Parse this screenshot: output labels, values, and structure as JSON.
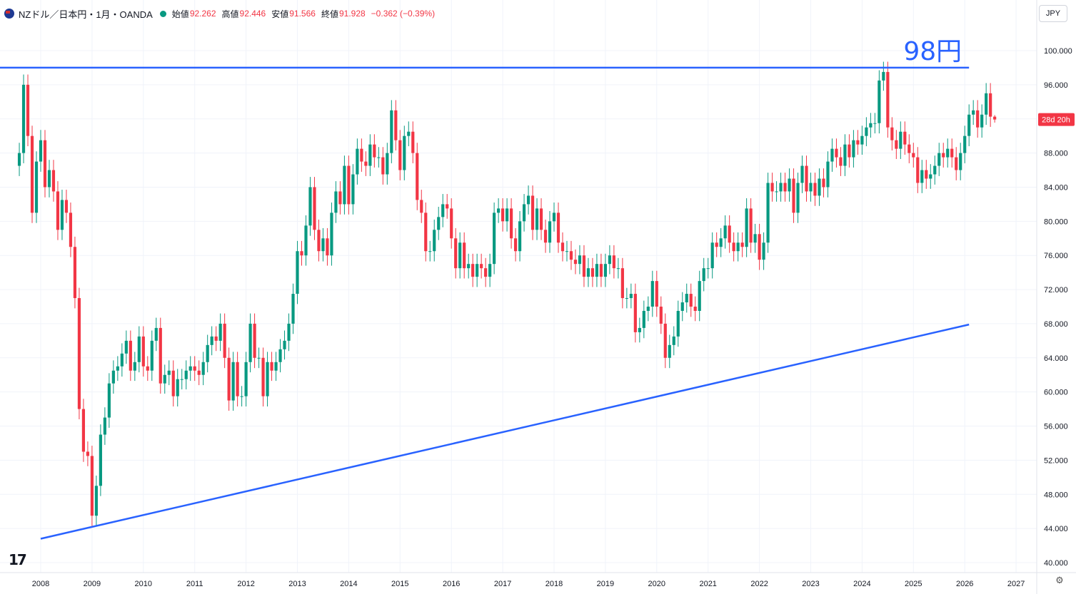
{
  "header": {
    "symbol": "NZドル／日本円・1月・OANDA",
    "open_label": "始値",
    "open": "92.262",
    "high_label": "高値",
    "high": "92.446",
    "low_label": "安値",
    "low": "91.566",
    "close_label": "終値",
    "close": "91.928",
    "change": "−0.362 (−0.39%)"
  },
  "currency_button": "JPY",
  "logo_text": "17",
  "chart_data": {
    "type": "candlestick",
    "interval": "1M",
    "ylim": [
      40,
      100
    ],
    "ytick_labels": [
      "100.000",
      "96.000",
      "92.000",
      "88.000",
      "84.000",
      "80.000",
      "76.000",
      "72.000",
      "68.000",
      "64.000",
      "60.000",
      "56.000",
      "52.000",
      "48.000",
      "44.000",
      "40.000"
    ],
    "xtick_labels": [
      "2008",
      "2009",
      "2010",
      "2011",
      "2012",
      "2013",
      "2014",
      "2015",
      "2016",
      "2017",
      "2018",
      "2019",
      "2020",
      "2021",
      "2022",
      "2023",
      "2024",
      "2025",
      "2026",
      "2027"
    ],
    "countdown_label": "28d 20h",
    "annotation": "98円",
    "resistance_line": {
      "value": 98.0,
      "from": "2007-08",
      "to": "2026-02"
    },
    "support_line": {
      "from": [
        "2008-01",
        42.8
      ],
      "to": [
        "2026-02",
        67.9
      ]
    },
    "colors": {
      "up": "#089981",
      "down": "#f23645",
      "lines": "#2962ff"
    },
    "closes": [
      {
        "d": "2007-08",
        "c": 88.0
      },
      {
        "d": "2007-09",
        "c": 96.0
      },
      {
        "d": "2007-10",
        "c": 90.0
      },
      {
        "d": "2007-11",
        "c": 81.0
      },
      {
        "d": "2007-12",
        "c": 87.0
      },
      {
        "d": "2008-01",
        "c": 89.5
      },
      {
        "d": "2008-02",
        "c": 84.0
      },
      {
        "d": "2008-03",
        "c": 86.0
      },
      {
        "d": "2008-04",
        "c": 83.5
      },
      {
        "d": "2008-05",
        "c": 79.0
      },
      {
        "d": "2008-06",
        "c": 82.5
      },
      {
        "d": "2008-07",
        "c": 81.0
      },
      {
        "d": "2008-08",
        "c": 77.0
      },
      {
        "d": "2008-09",
        "c": 71.0
      },
      {
        "d": "2008-10",
        "c": 58.0
      },
      {
        "d": "2008-11",
        "c": 53.0
      },
      {
        "d": "2008-12",
        "c": 52.5
      },
      {
        "d": "2009-01",
        "c": 45.5
      },
      {
        "d": "2009-02",
        "c": 49.0
      },
      {
        "d": "2009-03",
        "c": 55.0
      },
      {
        "d": "2009-04",
        "c": 57.0
      },
      {
        "d": "2009-05",
        "c": 61.0
      },
      {
        "d": "2009-06",
        "c": 62.5
      },
      {
        "d": "2009-07",
        "c": 63.0
      },
      {
        "d": "2009-08",
        "c": 64.5
      },
      {
        "d": "2009-09",
        "c": 66.0
      },
      {
        "d": "2009-10",
        "c": 62.5
      },
      {
        "d": "2009-11",
        "c": 63.5
      },
      {
        "d": "2009-12",
        "c": 66.5
      },
      {
        "d": "2010-01",
        "c": 63.0
      },
      {
        "d": "2010-02",
        "c": 62.5
      },
      {
        "d": "2010-03",
        "c": 66.0
      },
      {
        "d": "2010-04",
        "c": 67.5
      },
      {
        "d": "2010-05",
        "c": 61.0
      },
      {
        "d": "2010-06",
        "c": 62.0
      },
      {
        "d": "2010-07",
        "c": 62.5
      },
      {
        "d": "2010-08",
        "c": 59.5
      },
      {
        "d": "2010-09",
        "c": 61.5
      },
      {
        "d": "2010-10",
        "c": 61.5
      },
      {
        "d": "2010-11",
        "c": 62.5
      },
      {
        "d": "2010-12",
        "c": 63.0
      },
      {
        "d": "2011-01",
        "c": 62.5
      },
      {
        "d": "2011-02",
        "c": 62.0
      },
      {
        "d": "2011-03",
        "c": 63.5
      },
      {
        "d": "2011-04",
        "c": 65.5
      },
      {
        "d": "2011-05",
        "c": 66.5
      },
      {
        "d": "2011-06",
        "c": 66.0
      },
      {
        "d": "2011-07",
        "c": 68.0
      },
      {
        "d": "2011-08",
        "c": 64.0
      },
      {
        "d": "2011-09",
        "c": 59.0
      },
      {
        "d": "2011-10",
        "c": 63.5
      },
      {
        "d": "2011-11",
        "c": 59.5
      },
      {
        "d": "2011-12",
        "c": 59.5
      },
      {
        "d": "2012-01",
        "c": 63.5
      },
      {
        "d": "2012-02",
        "c": 68.0
      },
      {
        "d": "2012-03",
        "c": 64.0
      },
      {
        "d": "2012-04",
        "c": 64.0
      },
      {
        "d": "2012-05",
        "c": 59.5
      },
      {
        "d": "2012-06",
        "c": 63.5
      },
      {
        "d": "2012-07",
        "c": 62.5
      },
      {
        "d": "2012-08",
        "c": 63.5
      },
      {
        "d": "2012-09",
        "c": 65.0
      },
      {
        "d": "2012-10",
        "c": 66.0
      },
      {
        "d": "2012-11",
        "c": 68.0
      },
      {
        "d": "2012-12",
        "c": 71.5
      },
      {
        "d": "2013-01",
        "c": 76.5
      },
      {
        "d": "2013-02",
        "c": 76.0
      },
      {
        "d": "2013-03",
        "c": 79.5
      },
      {
        "d": "2013-04",
        "c": 84.0
      },
      {
        "d": "2013-05",
        "c": 79.0
      },
      {
        "d": "2013-06",
        "c": 76.5
      },
      {
        "d": "2013-07",
        "c": 78.0
      },
      {
        "d": "2013-08",
        "c": 76.0
      },
      {
        "d": "2013-09",
        "c": 81.0
      },
      {
        "d": "2013-10",
        "c": 83.5
      },
      {
        "d": "2013-11",
        "c": 82.0
      },
      {
        "d": "2013-12",
        "c": 86.5
      },
      {
        "d": "2014-01",
        "c": 82.0
      },
      {
        "d": "2014-02",
        "c": 85.5
      },
      {
        "d": "2014-03",
        "c": 88.5
      },
      {
        "d": "2014-04",
        "c": 87.0
      },
      {
        "d": "2014-05",
        "c": 86.5
      },
      {
        "d": "2014-06",
        "c": 89.0
      },
      {
        "d": "2014-07",
        "c": 87.5
      },
      {
        "d": "2014-08",
        "c": 87.5
      },
      {
        "d": "2014-09",
        "c": 85.5
      },
      {
        "d": "2014-10",
        "c": 88.0
      },
      {
        "d": "2014-11",
        "c": 93.0
      },
      {
        "d": "2014-12",
        "c": 89.5
      },
      {
        "d": "2015-01",
        "c": 86.0
      },
      {
        "d": "2015-02",
        "c": 90.0
      },
      {
        "d": "2015-03",
        "c": 90.5
      },
      {
        "d": "2015-04",
        "c": 88.0
      },
      {
        "d": "2015-05",
        "c": 82.5
      },
      {
        "d": "2015-06",
        "c": 81.0
      },
      {
        "d": "2015-07",
        "c": 76.5
      },
      {
        "d": "2015-08",
        "c": 76.5
      },
      {
        "d": "2015-09",
        "c": 79.0
      },
      {
        "d": "2015-10",
        "c": 80.5
      },
      {
        "d": "2015-11",
        "c": 82.0
      },
      {
        "d": "2015-12",
        "c": 81.5
      },
      {
        "d": "2016-01",
        "c": 78.0
      },
      {
        "d": "2016-02",
        "c": 74.5
      },
      {
        "d": "2016-03",
        "c": 77.5
      },
      {
        "d": "2016-04",
        "c": 74.5
      },
      {
        "d": "2016-05",
        "c": 75.0
      },
      {
        "d": "2016-06",
        "c": 73.5
      },
      {
        "d": "2016-07",
        "c": 75.0
      },
      {
        "d": "2016-08",
        "c": 74.5
      },
      {
        "d": "2016-09",
        "c": 73.5
      },
      {
        "d": "2016-10",
        "c": 75.0
      },
      {
        "d": "2016-11",
        "c": 81.0
      },
      {
        "d": "2016-12",
        "c": 81.5
      },
      {
        "d": "2017-01",
        "c": 80.0
      },
      {
        "d": "2017-02",
        "c": 81.5
      },
      {
        "d": "2017-03",
        "c": 78.0
      },
      {
        "d": "2017-04",
        "c": 76.5
      },
      {
        "d": "2017-05",
        "c": 80.0
      },
      {
        "d": "2017-06",
        "c": 82.0
      },
      {
        "d": "2017-07",
        "c": 83.0
      },
      {
        "d": "2017-08",
        "c": 79.0
      },
      {
        "d": "2017-09",
        "c": 81.5
      },
      {
        "d": "2017-10",
        "c": 79.0
      },
      {
        "d": "2017-11",
        "c": 77.5
      },
      {
        "d": "2017-12",
        "c": 80.0
      },
      {
        "d": "2018-01",
        "c": 81.0
      },
      {
        "d": "2018-02",
        "c": 77.5
      },
      {
        "d": "2018-03",
        "c": 76.5
      },
      {
        "d": "2018-04",
        "c": 76.5
      },
      {
        "d": "2018-05",
        "c": 75.5
      },
      {
        "d": "2018-06",
        "c": 75.0
      },
      {
        "d": "2018-07",
        "c": 76.0
      },
      {
        "d": "2018-08",
        "c": 73.5
      },
      {
        "d": "2018-09",
        "c": 74.5
      },
      {
        "d": "2018-10",
        "c": 73.5
      },
      {
        "d": "2018-11",
        "c": 75.0
      },
      {
        "d": "2018-12",
        "c": 73.5
      },
      {
        "d": "2019-01",
        "c": 75.0
      },
      {
        "d": "2019-02",
        "c": 76.0
      },
      {
        "d": "2019-03",
        "c": 74.5
      },
      {
        "d": "2019-04",
        "c": 74.5
      },
      {
        "d": "2019-05",
        "c": 71.0
      },
      {
        "d": "2019-06",
        "c": 71.0
      },
      {
        "d": "2019-07",
        "c": 71.5
      },
      {
        "d": "2019-08",
        "c": 67.0
      },
      {
        "d": "2019-09",
        "c": 67.5
      },
      {
        "d": "2019-10",
        "c": 69.5
      },
      {
        "d": "2019-11",
        "c": 70.0
      },
      {
        "d": "2019-12",
        "c": 73.0
      },
      {
        "d": "2020-01",
        "c": 70.0
      },
      {
        "d": "2020-02",
        "c": 68.0
      },
      {
        "d": "2020-03",
        "c": 64.0
      },
      {
        "d": "2020-04",
        "c": 65.5
      },
      {
        "d": "2020-05",
        "c": 66.5
      },
      {
        "d": "2020-06",
        "c": 69.5
      },
      {
        "d": "2020-07",
        "c": 70.5
      },
      {
        "d": "2020-08",
        "c": 71.5
      },
      {
        "d": "2020-09",
        "c": 70.0
      },
      {
        "d": "2020-10",
        "c": 69.5
      },
      {
        "d": "2020-11",
        "c": 73.0
      },
      {
        "d": "2020-12",
        "c": 74.5
      },
      {
        "d": "2021-01",
        "c": 74.5
      },
      {
        "d": "2021-02",
        "c": 77.5
      },
      {
        "d": "2021-03",
        "c": 77.0
      },
      {
        "d": "2021-04",
        "c": 78.0
      },
      {
        "d": "2021-05",
        "c": 79.5
      },
      {
        "d": "2021-06",
        "c": 77.5
      },
      {
        "d": "2021-07",
        "c": 76.5
      },
      {
        "d": "2021-08",
        "c": 77.5
      },
      {
        "d": "2021-09",
        "c": 77.0
      },
      {
        "d": "2021-10",
        "c": 81.5
      },
      {
        "d": "2021-11",
        "c": 77.5
      },
      {
        "d": "2021-12",
        "c": 78.5
      },
      {
        "d": "2022-01",
        "c": 75.5
      },
      {
        "d": "2022-02",
        "c": 77.5
      },
      {
        "d": "2022-03",
        "c": 84.5
      },
      {
        "d": "2022-04",
        "c": 83.5
      },
      {
        "d": "2022-05",
        "c": 83.5
      },
      {
        "d": "2022-06",
        "c": 84.5
      },
      {
        "d": "2022-07",
        "c": 83.5
      },
      {
        "d": "2022-08",
        "c": 85.0
      },
      {
        "d": "2022-09",
        "c": 81.0
      },
      {
        "d": "2022-10",
        "c": 84.5
      },
      {
        "d": "2022-11",
        "c": 86.5
      },
      {
        "d": "2022-12",
        "c": 83.5
      },
      {
        "d": "2023-01",
        "c": 84.5
      },
      {
        "d": "2023-02",
        "c": 83.0
      },
      {
        "d": "2023-03",
        "c": 85.0
      },
      {
        "d": "2023-04",
        "c": 84.0
      },
      {
        "d": "2023-05",
        "c": 87.0
      },
      {
        "d": "2023-06",
        "c": 88.5
      },
      {
        "d": "2023-07",
        "c": 87.5
      },
      {
        "d": "2023-08",
        "c": 86.5
      },
      {
        "d": "2023-09",
        "c": 89.0
      },
      {
        "d": "2023-10",
        "c": 87.5
      },
      {
        "d": "2023-11",
        "c": 89.5
      },
      {
        "d": "2023-12",
        "c": 89.0
      },
      {
        "d": "2024-01",
        "c": 90.0
      },
      {
        "d": "2024-02",
        "c": 91.0
      },
      {
        "d": "2024-03",
        "c": 91.5
      },
      {
        "d": "2024-04",
        "c": 91.5
      },
      {
        "d": "2024-05",
        "c": 96.5
      },
      {
        "d": "2024-06",
        "c": 97.5
      },
      {
        "d": "2024-07",
        "c": 91.0
      },
      {
        "d": "2024-08",
        "c": 89.5
      },
      {
        "d": "2024-09",
        "c": 88.5
      },
      {
        "d": "2024-10",
        "c": 90.5
      },
      {
        "d": "2024-11",
        "c": 89.0
      },
      {
        "d": "2024-12",
        "c": 88.0
      },
      {
        "d": "2025-01",
        "c": 87.5
      },
      {
        "d": "2025-02",
        "c": 84.5
      },
      {
        "d": "2025-03",
        "c": 86.0
      },
      {
        "d": "2025-04",
        "c": 85.0
      },
      {
        "d": "2025-05",
        "c": 85.5
      },
      {
        "d": "2025-06",
        "c": 86.5
      },
      {
        "d": "2025-07",
        "c": 88.0
      },
      {
        "d": "2025-08",
        "c": 87.5
      },
      {
        "d": "2025-09",
        "c": 88.5
      },
      {
        "d": "2025-10",
        "c": 87.5
      },
      {
        "d": "2025-11",
        "c": 86.0
      },
      {
        "d": "2025-12",
        "c": 88.0
      },
      {
        "d": "2026-01",
        "c": 90.0
      },
      {
        "d": "2026-02",
        "c": 92.5
      },
      {
        "d": "2026-03",
        "c": 93.0
      },
      {
        "d": "2026-04",
        "c": 91.0
      },
      {
        "d": "2026-05",
        "c": 92.5
      },
      {
        "d": "2026-06",
        "c": 95.0
      },
      {
        "d": "2026-07",
        "c": 92.262
      },
      {
        "d": "2026-08",
        "c": 91.928
      }
    ],
    "last_candle": {
      "d": "2026-08",
      "o": 92.262,
      "h": 92.446,
      "l": 91.566,
      "c": 91.928
    }
  }
}
